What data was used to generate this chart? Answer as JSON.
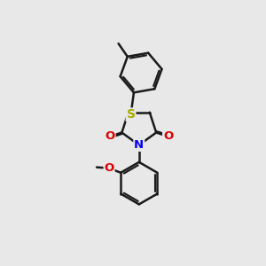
{
  "background_color": "#e8e8e8",
  "bond_color": "#1a1a1a",
  "bond_width": 1.8,
  "atom_colors": {
    "N": "#0000ee",
    "O": "#dd0000",
    "S": "#aaaa00",
    "C": "#1a1a1a"
  },
  "font_size_atom": 9.5,
  "xlim": [
    0,
    10
  ],
  "ylim": [
    0,
    13
  ]
}
